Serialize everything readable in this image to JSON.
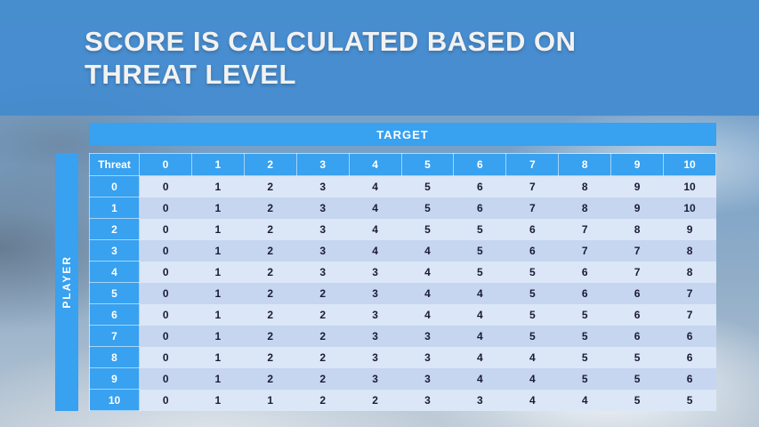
{
  "title": {
    "line1": "SCORE IS CALCULATED BASED ON",
    "line2": "THREAT LEVEL"
  },
  "table": {
    "target_label": "TARGET",
    "player_label": "PLAYER",
    "corner_header": "Threat",
    "column_headers": [
      "0",
      "1",
      "2",
      "3",
      "4",
      "5",
      "6",
      "7",
      "8",
      "9",
      "10"
    ],
    "rows": [
      {
        "threat": "0",
        "values": [
          0,
          1,
          2,
          3,
          4,
          5,
          6,
          7,
          8,
          9,
          10
        ]
      },
      {
        "threat": "1",
        "values": [
          0,
          1,
          2,
          3,
          4,
          5,
          6,
          7,
          8,
          9,
          10
        ]
      },
      {
        "threat": "2",
        "values": [
          0,
          1,
          2,
          3,
          4,
          5,
          5,
          6,
          7,
          8,
          9
        ]
      },
      {
        "threat": "3",
        "values": [
          0,
          1,
          2,
          3,
          4,
          4,
          5,
          6,
          7,
          7,
          8
        ]
      },
      {
        "threat": "4",
        "values": [
          0,
          1,
          2,
          3,
          3,
          4,
          5,
          5,
          6,
          7,
          8
        ]
      },
      {
        "threat": "5",
        "values": [
          0,
          1,
          2,
          2,
          3,
          4,
          4,
          5,
          6,
          6,
          7
        ]
      },
      {
        "threat": "6",
        "values": [
          0,
          1,
          2,
          2,
          3,
          4,
          4,
          5,
          5,
          6,
          7
        ]
      },
      {
        "threat": "7",
        "values": [
          0,
          1,
          2,
          2,
          3,
          3,
          4,
          5,
          5,
          6,
          6
        ]
      },
      {
        "threat": "8",
        "values": [
          0,
          1,
          2,
          2,
          3,
          3,
          4,
          4,
          5,
          5,
          6
        ]
      },
      {
        "threat": "9",
        "values": [
          0,
          1,
          2,
          2,
          3,
          3,
          4,
          4,
          5,
          5,
          6
        ]
      },
      {
        "threat": "10",
        "values": [
          0,
          1,
          1,
          2,
          2,
          3,
          3,
          4,
          4,
          5,
          5
        ]
      }
    ]
  },
  "colors": {
    "accent_blue": "#38a1f0",
    "band_light": "#dbe6f7",
    "band_dark": "#c6d6f0",
    "cell_text": "#1b1b35",
    "title_text": "#f2f2f2"
  }
}
